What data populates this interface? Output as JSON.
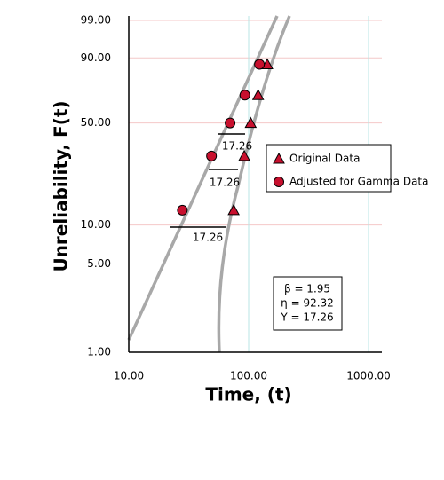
{
  "chart_data": {
    "type": "weibull-probability",
    "x_label": "Time, (t)",
    "y_label": "Unreliability, F(t)",
    "xscale": "log",
    "yscale": "weibull",
    "xlim": [
      10,
      1000
    ],
    "ylim": [
      1,
      99
    ],
    "xticks": [
      {
        "value": 10,
        "label": "10.00"
      },
      {
        "value": 100,
        "label": "100.00"
      },
      {
        "value": 1000,
        "label": "1000.00"
      }
    ],
    "yticks": [
      {
        "value": 1,
        "label": "1.00"
      },
      {
        "value": 5,
        "label": "5.00"
      },
      {
        "value": 10,
        "label": "10.00"
      },
      {
        "value": 50,
        "label": "50.00"
      },
      {
        "value": 90,
        "label": "90.00"
      },
      {
        "value": 99,
        "label": "99.00"
      }
    ],
    "grid": true,
    "legend": "right",
    "series": [
      {
        "name": "Original Data",
        "marker": "triangle",
        "color": "#c8102e",
        "x": [
          75,
          92,
          104,
          120,
          143
        ],
        "values": [
          12.94,
          31.38,
          50,
          68.62,
          87.06
        ]
      },
      {
        "name": "Adjusted for Gamma Data",
        "marker": "circle",
        "color": "#c8102e",
        "x": [
          28,
          49,
          70,
          93,
          123
        ],
        "values": [
          12.94,
          31.38,
          50,
          68.62,
          87.06
        ]
      }
    ],
    "shift_labels": [
      "17.26",
      "17.26",
      "17.26"
    ],
    "parameters": [
      "β = 1.95",
      "η = 92.32",
      "Υ = 17.26"
    ]
  }
}
